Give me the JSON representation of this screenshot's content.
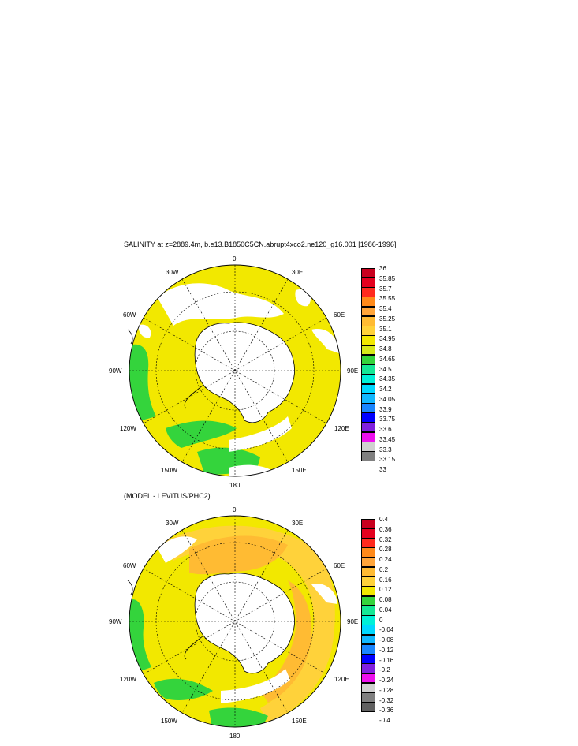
{
  "panels": [
    {
      "title": "SALINITY at z=2889.4m, b.e13.B1850C5CN.abrupt4xco2.ne120_g16.001 [1986-1996]",
      "lon_labels": {
        "top": "0",
        "bottom": "180",
        "left": "90W",
        "right": "90E",
        "ul": "30W",
        "ur": "30E",
        "ml": "60W",
        "mr": "60E",
        "ll": "120W",
        "lr": "120E",
        "bl": "150W",
        "br": "150E"
      },
      "colorbar": {
        "labels": [
          "36",
          "35.85",
          "35.7",
          "35.55",
          "35.4",
          "35.25",
          "35.1",
          "34.95",
          "34.8",
          "34.65",
          "34.5",
          "34.35",
          "34.2",
          "34.05",
          "33.9",
          "33.75",
          "33.6",
          "33.45",
          "33.3",
          "33.15",
          "33"
        ],
        "colors": [
          "#c8001e",
          "#e4001e",
          "#ff2a1e",
          "#ff8a1a",
          "#ffa53a",
          "#ffbb33",
          "#ffd23a",
          "#f2e800",
          "#d6e81a",
          "#34d43c",
          "#14e896",
          "#00f0d8",
          "#00d8ff",
          "#12b8ff",
          "#1a86ff",
          "#0000ff",
          "#8020e0",
          "#ee10ee",
          "#d0d0d0",
          "#808080"
        ]
      }
    },
    {
      "title": "(MODEL - LEVITUS/PHC2)",
      "lon_labels": {
        "top": "0",
        "bottom": "180",
        "left": "90W",
        "right": "90E",
        "ul": "30W",
        "ur": "30E",
        "ml": "60W",
        "mr": "60E",
        "ll": "120W",
        "lr": "120E",
        "bl": "150W",
        "br": "150E"
      },
      "colorbar": {
        "labels": [
          "0.4",
          "0.36",
          "0.32",
          "0.28",
          "0.24",
          "0.2",
          "0.16",
          "0.12",
          "0.08",
          "0.04",
          "0",
          "-0.04",
          "-0.08",
          "-0.12",
          "-0.16",
          "-0.2",
          "-0.24",
          "-0.28",
          "-0.32",
          "-0.36",
          "-0.4"
        ],
        "colors": [
          "#c8001e",
          "#e4001e",
          "#ff2a1e",
          "#ff8a1a",
          "#ffa53a",
          "#ffbb33",
          "#ffd23a",
          "#f2e800",
          "#34d43c",
          "#14e896",
          "#00f0d8",
          "#00d8ff",
          "#12b8ff",
          "#1a86ff",
          "#0000ff",
          "#8020e0",
          "#ee10ee",
          "#d0d0d0",
          "#808080",
          "#606060"
        ]
      }
    }
  ]
}
